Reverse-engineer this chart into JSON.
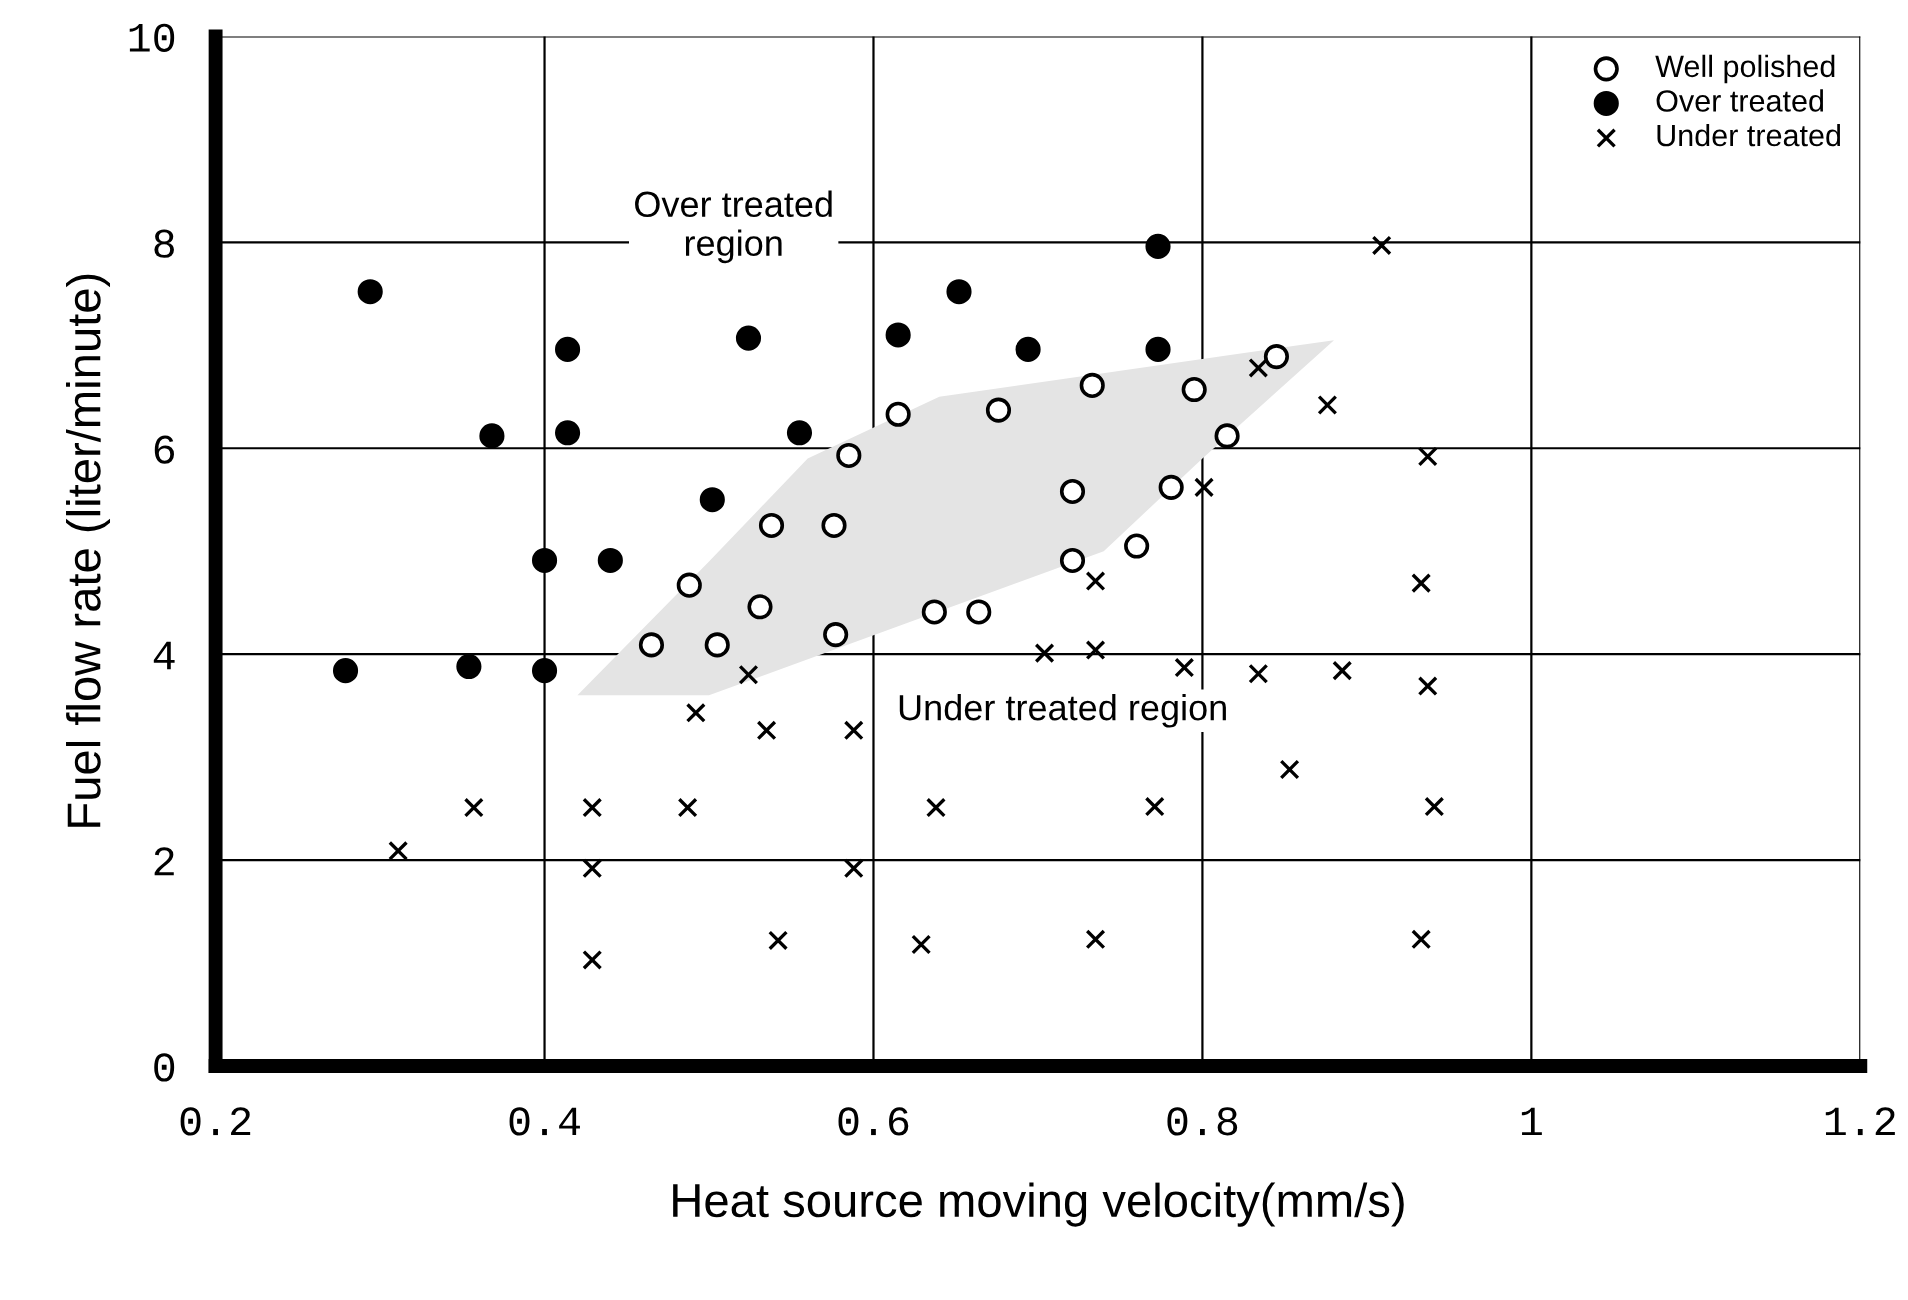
{
  "chart_data": {
    "type": "scatter",
    "xlabel": "Heat source moving velocity(mm/s)",
    "ylabel": "Fuel flow rate (liter/minute)",
    "xlim": [
      0.2,
      1.2
    ],
    "ylim": [
      0,
      10
    ],
    "xticks": [
      0.2,
      0.4,
      0.6,
      0.8,
      {
        "value": 1.0,
        "label": "1"
      },
      1.2
    ],
    "yticks": [
      0,
      2,
      4,
      6,
      8,
      10
    ],
    "grid": true,
    "legend": "top right",
    "annotations": [
      "Over treated\nregion",
      "Under treated region"
    ],
    "series": [
      {
        "name": "Well polished",
        "color": "#ffffff",
        "marker": "circle",
        "x": [
          0.615,
          0.676,
          0.585,
          0.538,
          0.576,
          0.488,
          0.531,
          0.637,
          0.664,
          0.465,
          0.505,
          0.577,
          0.733,
          0.795,
          0.845,
          0.815,
          0.721,
          0.781,
          0.76,
          0.721
        ],
        "values": [
          6.33,
          6.37,
          5.93,
          5.25,
          5.25,
          4.67,
          4.46,
          4.41,
          4.41,
          4.09,
          4.09,
          4.19,
          6.61,
          6.57,
          6.89,
          6.12,
          5.58,
          5.62,
          5.05,
          4.91
        ]
      },
      {
        "name": "Over treated",
        "color": "#000000",
        "marker": "circle",
        "x": [
          0.294,
          0.414,
          0.524,
          0.615,
          0.652,
          0.694,
          0.368,
          0.414,
          0.555,
          0.502,
          0.4,
          0.44,
          0.279,
          0.354,
          0.4,
          0.773,
          0.773
        ],
        "values": [
          7.52,
          6.96,
          7.07,
          7.1,
          7.52,
          6.96,
          6.12,
          6.15,
          6.15,
          5.5,
          4.91,
          4.91,
          3.84,
          3.88,
          3.84,
          7.96,
          6.96
        ]
      },
      {
        "name": "Under treated",
        "color": "#000000",
        "marker": "cross",
        "x": [
          0.909,
          0.834,
          0.876,
          0.937,
          0.801,
          0.933,
          0.735,
          0.704,
          0.735,
          0.789,
          0.834,
          0.885,
          0.937,
          0.853,
          0.771,
          0.941,
          0.735,
          0.933,
          0.524,
          0.492,
          0.535,
          0.588,
          0.357,
          0.429,
          0.487,
          0.638,
          0.311,
          0.429,
          0.588,
          0.542,
          0.629,
          0.429
        ],
        "values": [
          7.97,
          6.78,
          6.42,
          5.92,
          5.62,
          4.69,
          4.71,
          4.01,
          4.04,
          3.87,
          3.81,
          3.84,
          3.69,
          2.88,
          2.52,
          2.52,
          1.23,
          1.23,
          3.8,
          3.43,
          3.26,
          3.26,
          2.51,
          2.51,
          2.51,
          2.51,
          2.09,
          1.92,
          1.92,
          1.22,
          1.18,
          1.03
        ]
      }
    ]
  }
}
